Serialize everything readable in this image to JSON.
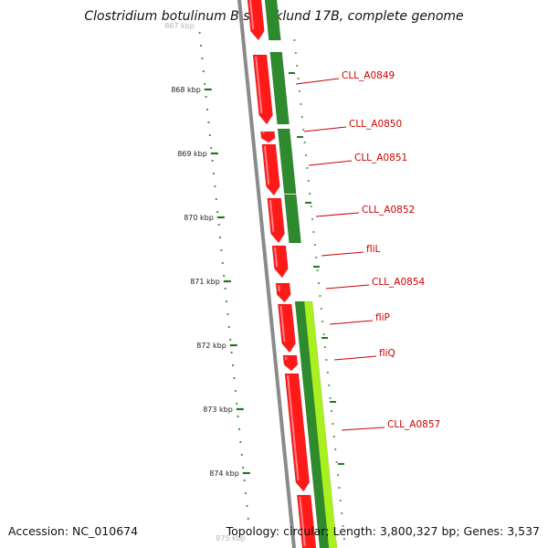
{
  "title": "Clostridium botulinum B str. Eklund 17B, complete genome",
  "accession_text": "Accession: NC_010674",
  "summary_text": "Topology: circular; Length: 3,800,327 bp; Genes: 3,537",
  "colors": {
    "reverse_strand": "#ff1a1a",
    "forward_strand": "#2d8a2d",
    "forward_light": "#a8f020",
    "backbone": "#8a8a8a",
    "label": "#cc0000",
    "kbp_ticks": "#1f7a1f"
  },
  "kbp_ticks": [
    {
      "label": "867 kbp",
      "faded": true
    },
    {
      "label": "868 kbp"
    },
    {
      "label": "869 kbp"
    },
    {
      "label": "870 kbp"
    },
    {
      "label": "871 kbp"
    },
    {
      "label": "872 kbp"
    },
    {
      "label": "873 kbp"
    },
    {
      "label": "874 kbp"
    },
    {
      "label": "875 kbp",
      "faded": true
    }
  ],
  "gene_labels": [
    {
      "name": "CLL_A0849"
    },
    {
      "name": "CLL_A0850"
    },
    {
      "name": "CLL_A0851"
    },
    {
      "name": "CLL_A0852"
    },
    {
      "name": "fliL"
    },
    {
      "name": "CLL_A0854"
    },
    {
      "name": "fliP"
    },
    {
      "name": "fliQ"
    },
    {
      "name": "CLL_A0857"
    }
  ]
}
